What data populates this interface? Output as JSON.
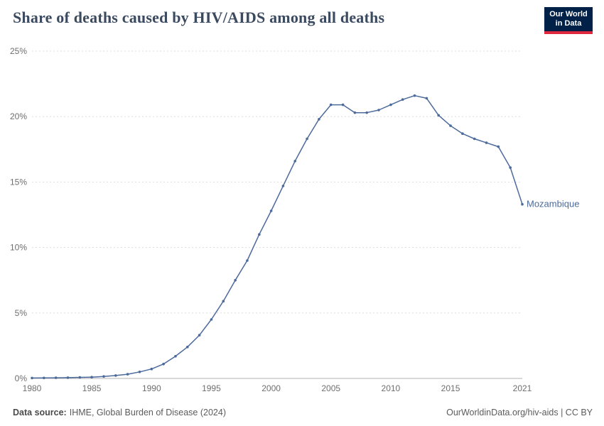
{
  "header": {
    "title": "Share of deaths caused by HIV/AIDS among all deaths",
    "logo": {
      "line1": "Our World",
      "line2": "in Data",
      "bg_color": "#002147",
      "accent_color": "#e0293f"
    }
  },
  "chart_data": {
    "type": "line",
    "title": "Share of deaths caused by HIV/AIDS among all deaths",
    "xlabel": "",
    "ylabel": "",
    "xlim": [
      1980,
      2021
    ],
    "ylim": [
      0,
      25
    ],
    "grid": "horizontal-dashed",
    "legend_position": "end-of-line-label",
    "x_ticks": [
      {
        "year": 1980,
        "label": "1980"
      },
      {
        "year": 1985,
        "label": "1985"
      },
      {
        "year": 1990,
        "label": "1990"
      },
      {
        "year": 1995,
        "label": "1995"
      },
      {
        "year": 2000,
        "label": "2000"
      },
      {
        "year": 2005,
        "label": "2005"
      },
      {
        "year": 2010,
        "label": "2010"
      },
      {
        "year": 2015,
        "label": "2015"
      },
      {
        "year": 2021,
        "label": "2021"
      }
    ],
    "y_ticks": [
      {
        "value": 0,
        "label": "0%"
      },
      {
        "value": 5,
        "label": "5%"
      },
      {
        "value": 10,
        "label": "10%"
      },
      {
        "value": 15,
        "label": "15%"
      },
      {
        "value": 20,
        "label": "20%"
      },
      {
        "value": 25,
        "label": "25%"
      }
    ],
    "series": [
      {
        "name": "Mozambique",
        "color": "#4c6a9c",
        "x": [
          1980,
          1981,
          1982,
          1983,
          1984,
          1985,
          1986,
          1987,
          1988,
          1989,
          1990,
          1991,
          1992,
          1993,
          1994,
          1995,
          1996,
          1997,
          1998,
          1999,
          2000,
          2001,
          2002,
          2003,
          2004,
          2005,
          2006,
          2007,
          2008,
          2009,
          2010,
          2011,
          2012,
          2013,
          2014,
          2015,
          2016,
          2017,
          2018,
          2019,
          2020,
          2021
        ],
        "values": [
          0.03,
          0.04,
          0.05,
          0.06,
          0.08,
          0.1,
          0.15,
          0.22,
          0.32,
          0.5,
          0.72,
          1.1,
          1.7,
          2.4,
          3.3,
          4.5,
          5.9,
          7.5,
          9.0,
          11.0,
          12.8,
          14.7,
          16.6,
          18.3,
          19.8,
          20.9,
          20.9,
          20.3,
          20.3,
          20.5,
          20.9,
          21.3,
          21.6,
          21.4,
          20.1,
          19.3,
          18.7,
          18.3,
          18.0,
          17.7,
          16.1,
          13.3
        ]
      }
    ],
    "end_label": "Mozambique"
  },
  "footer": {
    "source_label": "Data source:",
    "source": "IHME, Global Burden of Disease (2024)",
    "credit": "OurWorldinData.org/hiv-aids | CC BY"
  }
}
